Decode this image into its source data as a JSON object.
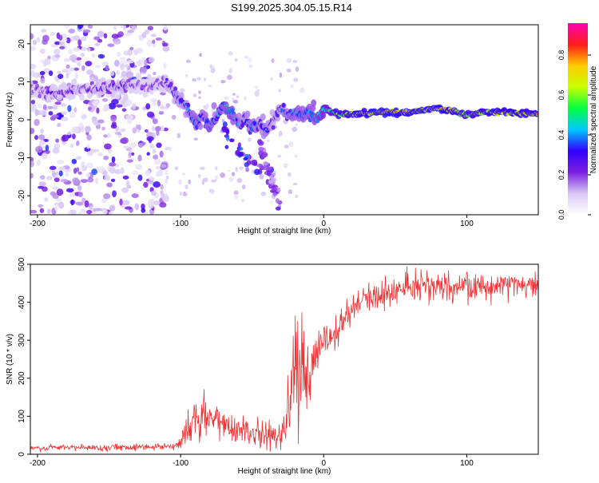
{
  "title": "S199.2025.304.05.15.R14",
  "chart_data": [
    {
      "type": "heatmap",
      "title": "S199.2025.304.05.15.R14",
      "xlabel": "Height of straight line (km)",
      "ylabel": "Frequency (Hz)",
      "xlim": [
        -205,
        150
      ],
      "ylim": [
        -25,
        25
      ],
      "xticks": [
        -200,
        -100,
        0,
        100
      ],
      "yticks": [
        20,
        10,
        0,
        -10,
        -20
      ],
      "colorbar": {
        "label": "Normalized spectral amplitude",
        "range": [
          0,
          0.96
        ],
        "ticks": [
          0,
          0.2,
          0.4,
          0.6,
          0.8
        ],
        "colormap": [
          "#ffffff",
          "#d8c8f4",
          "#7b1fe0",
          "#3000ff",
          "#00c8ff",
          "#00ff40",
          "#c8ff00",
          "#ffcc00",
          "#ff1a1a",
          "#ff00b4"
        ]
      },
      "ridge": {
        "x": [
          -205,
          -190,
          -180,
          -170,
          -160,
          -150,
          -140,
          -130,
          -120,
          -110,
          -100,
          -95,
          -90,
          -85,
          -80,
          -75,
          -70,
          -65,
          -60,
          -55,
          -50,
          -45,
          -40,
          -35,
          -30,
          -25,
          -20,
          -15,
          -10,
          -5,
          0,
          5,
          10,
          20,
          40,
          60,
          80,
          90,
          100,
          110,
          120,
          150
        ],
        "y": [
          8,
          7,
          7.5,
          8,
          8,
          8.5,
          9,
          9,
          9,
          9.5,
          5,
          3,
          -1,
          1,
          -2,
          1,
          4,
          2,
          -1,
          0,
          -2,
          -1,
          -3,
          0,
          3,
          1,
          2,
          1,
          2,
          0,
          3,
          2,
          1.5,
          1.5,
          2,
          2,
          3,
          2.5,
          1,
          2,
          2,
          1.5
        ],
        "amp": [
          0.25,
          0.3,
          0.3,
          0.25,
          0.3,
          0.3,
          0.3,
          0.25,
          0.25,
          0.3,
          0.4,
          0.4,
          0.5,
          0.45,
          0.5,
          0.45,
          0.5,
          0.55,
          0.45,
          0.4,
          0.5,
          0.4,
          0.45,
          0.35,
          0.4,
          0.45,
          0.5,
          0.5,
          0.5,
          0.55,
          0.6,
          0.7,
          0.8,
          0.9,
          0.95,
          0.92,
          0.95,
          0.9,
          0.8,
          0.85,
          0.9,
          0.9
        ]
      },
      "branches": [
        {
          "x": [
            -70,
            -60,
            -50,
            -40,
            -35
          ],
          "y": [
            -3,
            -8,
            -12,
            -14,
            -12
          ],
          "amp": 0.3
        },
        {
          "x": [
            -45,
            -35,
            -30
          ],
          "y": [
            -6,
            -18,
            -22
          ],
          "amp": 0.2
        }
      ]
    },
    {
      "type": "line",
      "xlabel": "Height of straight line (km)",
      "ylabel": "SNR (10 * v/v)",
      "xlim": [
        -205,
        150
      ],
      "ylim": [
        0,
        500
      ],
      "xticks": [
        -200,
        -100,
        0,
        100
      ],
      "yticks": [
        0,
        100,
        200,
        300,
        400,
        500
      ],
      "series": [
        {
          "name": "SNR",
          "color": "#ee3333",
          "x": [
            -205,
            -180,
            -160,
            -140,
            -120,
            -105,
            -100,
            -95,
            -90,
            -85,
            -80,
            -75,
            -70,
            -65,
            -60,
            -55,
            -50,
            -45,
            -40,
            -35,
            -30,
            -27,
            -25,
            -22,
            -20,
            -17,
            -15,
            -12,
            -10,
            -7,
            -5,
            -2,
            0,
            3,
            5,
            8,
            10,
            13,
            15,
            18,
            20,
            25,
            30,
            40,
            50,
            60,
            80,
            100,
            120,
            150
          ],
          "mean": [
            15,
            18,
            17,
            19,
            20,
            22,
            30,
            70,
            90,
            90,
            100,
            85,
            80,
            75,
            65,
            70,
            55,
            50,
            55,
            45,
            40,
            80,
            150,
            200,
            210,
            220,
            240,
            210,
            200,
            260,
            280,
            270,
            300,
            290,
            300,
            310,
            330,
            340,
            350,
            370,
            380,
            400,
            410,
            420,
            430,
            435,
            440,
            440,
            445,
            450
          ],
          "noise": [
            6,
            8,
            7,
            8,
            8,
            10,
            20,
            40,
            50,
            55,
            55,
            50,
            45,
            40,
            40,
            40,
            30,
            30,
            35,
            25,
            25,
            60,
            100,
            130,
            130,
            120,
            130,
            120,
            110,
            60,
            50,
            45,
            40,
            40,
            45,
            45,
            45,
            45,
            40,
            40,
            40,
            35,
            35,
            35,
            35,
            35,
            35,
            35,
            35,
            35
          ]
        }
      ]
    }
  ]
}
